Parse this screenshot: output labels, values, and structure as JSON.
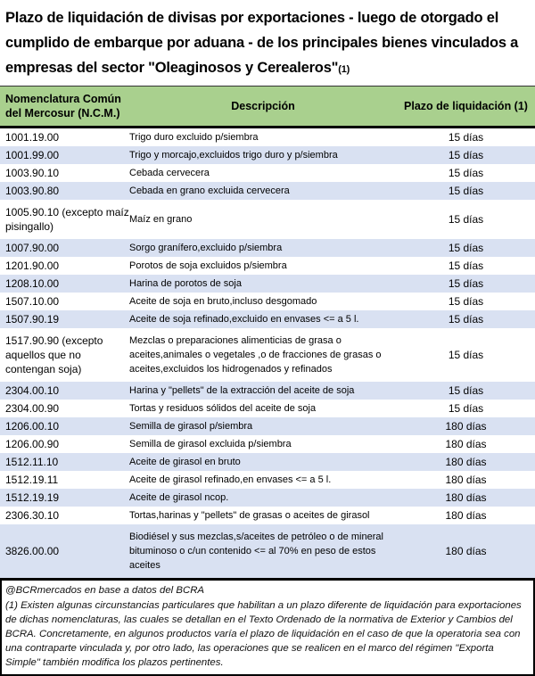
{
  "title": {
    "lines": [
      "Plazo de liquidación de divisas por exportaciones - luego de otorgado el",
      "cumplido de embarque por aduana - de los principales bienes vinculados a",
      "empresas del sector \"Oleaginosos y Cerealeros\""
    ],
    "footnote_marker": "(1)"
  },
  "table": {
    "columns": [
      "Nomenclatura Común del Mercosur (N.C.M.)",
      "Descripción",
      "Plazo de liquidación (1)"
    ],
    "rows": [
      {
        "ncm": "1001.19.00",
        "desc": "Trigo duro excluido p/siembra",
        "plazo": "15 días"
      },
      {
        "ncm": "1001.99.00",
        "desc": "Trigo y morcajo,excluidos trigo duro y p/siembra",
        "plazo": "15 días"
      },
      {
        "ncm": "1003.90.10",
        "desc": "Cebada cervecera",
        "plazo": "15 días"
      },
      {
        "ncm": "1003.90.80",
        "desc": "Cebada en grano excluida cervecera",
        "plazo": "15 días"
      },
      {
        "ncm": "1005.90.10 (excepto maíz pisingallo)",
        "desc": "Maíz en grano",
        "plazo": "15 días"
      },
      {
        "ncm": "1007.90.00",
        "desc": "Sorgo granífero,excluido p/siembra",
        "plazo": "15 días"
      },
      {
        "ncm": "1201.90.00",
        "desc": "Porotos de soja excluidos p/siembra",
        "plazo": "15 días"
      },
      {
        "ncm": "1208.10.00",
        "desc": "Harina de porotos de soja",
        "plazo": "15 días"
      },
      {
        "ncm": "1507.10.00",
        "desc": "Aceite de soja en bruto,incluso desgomado",
        "plazo": "15 días"
      },
      {
        "ncm": "1507.90.19",
        "desc": "Aceite de soja refinado,excluido en envases <= a 5 l.",
        "plazo": "15 días"
      },
      {
        "ncm": "1517.90.90 (excepto aquellos que no contengan soja)",
        "desc": "Mezclas o preparaciones alimenticias de grasa o aceites,animales o vegetales ,o de fracciones de grasas o aceites,excluidos los hidrogenados y refinados",
        "plazo": "15 días"
      },
      {
        "ncm": "2304.00.10",
        "desc": "Harina y \"pellets\" de la extracción del aceite de soja",
        "plazo": "15 días"
      },
      {
        "ncm": "2304.00.90",
        "desc": "Tortas y residuos sólidos del aceite de soja",
        "plazo": "15 días"
      },
      {
        "ncm": "1206.00.10",
        "desc": "Semilla de girasol p/siembra",
        "plazo": "180 días"
      },
      {
        "ncm": "1206.00.90",
        "desc": "Semilla de girasol excluida p/siembra",
        "plazo": "180 días"
      },
      {
        "ncm": "1512.11.10",
        "desc": "Aceite de girasol en bruto",
        "plazo": "180 días"
      },
      {
        "ncm": "1512.19.11",
        "desc": "Aceite de girasol refinado,en envases <= a 5 l.",
        "plazo": "180 días"
      },
      {
        "ncm": "1512.19.19",
        "desc": "Aceite de girasol ncop.",
        "plazo": "180 días"
      },
      {
        "ncm": "2306.30.10",
        "desc": "Tortas,harinas y \"pellets\" de grasas o aceites de girasol",
        "plazo": "180 días"
      },
      {
        "ncm": "3826.00.00",
        "desc": "Biodiésel y sus mezclas,s/aceites de petróleo o de mineral bituminoso o c/un contenido <= al 70% en peso de estos aceites",
        "plazo": "180 días"
      }
    ]
  },
  "footer": {
    "source": "@BCRmercados en base a datos del BCRA",
    "note": "(1) Existen algunas circunstancias particulares que habilitan a un plazo diferente de liquidación para exportaciones de dichas nomenclaturas, las cuales se detallan en el Texto Ordenado de la normativa de Exterior y Cambios del BCRA. Concretamente, en algunos productos varía el plazo de liquidación en el caso de que la operatoria sea con una contraparte vinculada y, por otro lado, las operaciones que se realicen en el marco del régimen \"Exporta Simple\" también modifica los plazos pertinentes."
  },
  "colors": {
    "header_bg": "#A9D08E",
    "alt_row_bg": "#D9E1F2",
    "border": "#000000",
    "text": "#000000"
  }
}
